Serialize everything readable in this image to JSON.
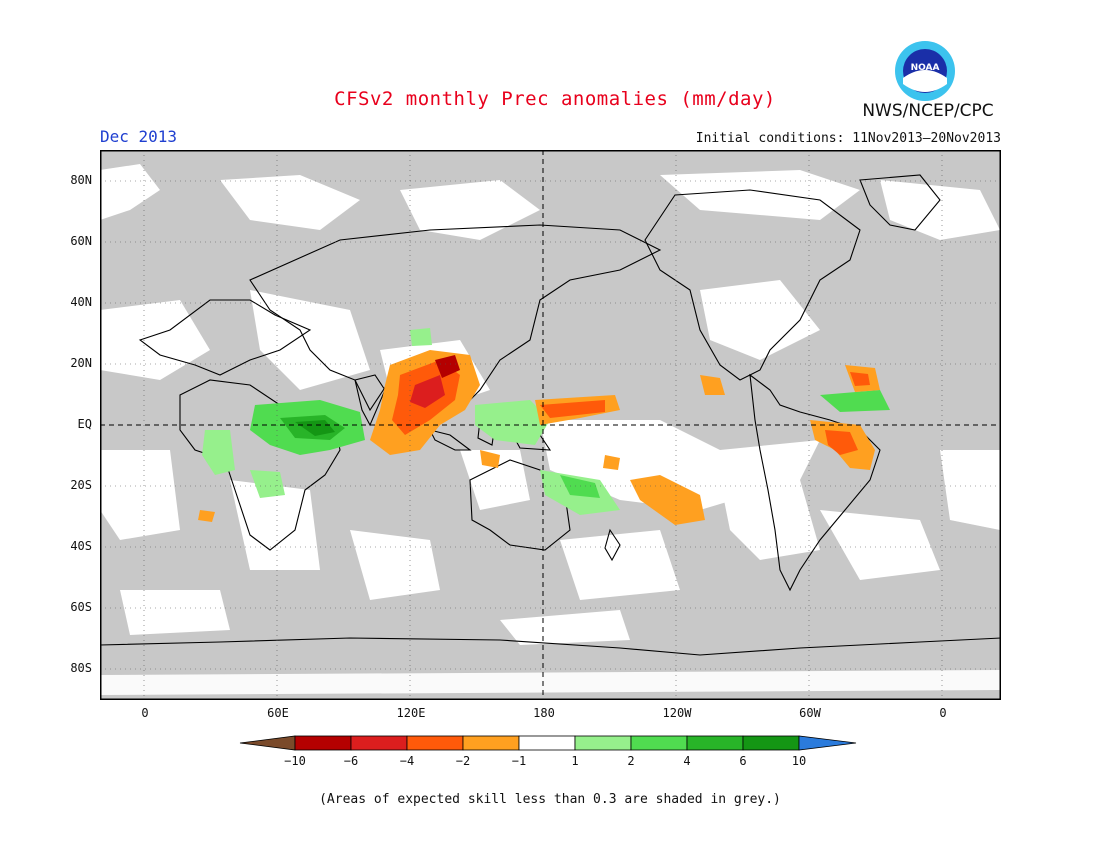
{
  "header": {
    "title": "CFSv2 monthly Prec anomalies (mm/day)",
    "org": "NWS/NCEP/CPC",
    "logo_text": "NOAA",
    "month": "Dec 2013",
    "initial_conditions": "Initial conditions: 11Nov2013–20Nov2013"
  },
  "map": {
    "lat_labels": [
      "80N",
      "60N",
      "40N",
      "20N",
      "EQ",
      "20S",
      "40S",
      "60S",
      "80S"
    ],
    "lon_labels": [
      "0",
      "60E",
      "120E",
      "180",
      "120W",
      "60W",
      "0"
    ],
    "colors": {
      "skill_grey": "#c8c8c8",
      "ocean_white": "#ffffff",
      "coast": "#000000"
    }
  },
  "legend": {
    "labels": [
      "−10",
      "−6",
      "−4",
      "−2",
      "−1",
      "1",
      "2",
      "4",
      "6",
      "10"
    ],
    "colors": [
      "#7a4a2a",
      "#b40000",
      "#dc1e1e",
      "#ff5a0a",
      "#ffa020",
      "#ffffff",
      "#96f08c",
      "#50dc50",
      "#28b428",
      "#149614",
      "#2b7bdc"
    ]
  },
  "footer": {
    "note": "(Areas of expected skill less than 0.3 are shaded in grey.)"
  }
}
